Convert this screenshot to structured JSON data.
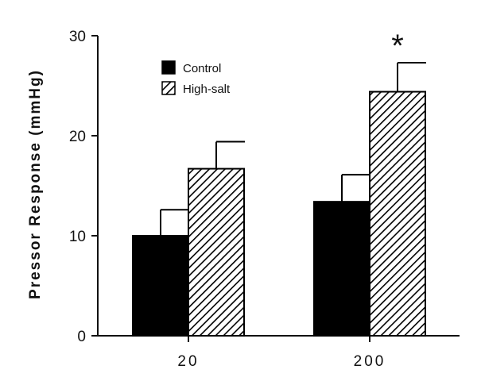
{
  "chart_data": {
    "type": "bar",
    "ylabel": "Pressor Response (mmHg)",
    "xlabel": "",
    "ylim": [
      0,
      30
    ],
    "yticks": [
      0,
      10,
      20,
      30
    ],
    "categories": [
      "20",
      "200"
    ],
    "series": [
      {
        "name": "Control",
        "values": [
          10.0,
          13.4
        ],
        "errors": [
          2.6,
          2.7
        ],
        "fill": "solid",
        "color": "#000000"
      },
      {
        "name": "High-salt",
        "values": [
          16.7,
          24.4
        ],
        "errors": [
          2.7,
          2.9
        ],
        "fill": "hatched",
        "color": "#000000"
      }
    ],
    "annotations": [
      {
        "text": "*",
        "category": "200",
        "series": "High-salt"
      }
    ],
    "legend_position": "top-left",
    "grid": false
  }
}
